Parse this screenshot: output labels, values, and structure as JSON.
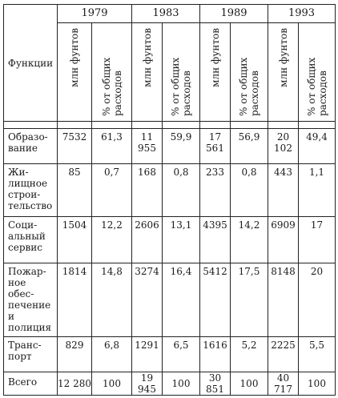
{
  "table": {
    "function_header": "Функции",
    "years": [
      "1979",
      "1983",
      "1989",
      "1993"
    ],
    "subheaders": {
      "mln": "млн фунтов",
      "mln_1993": "млн фунтов",
      "pct": "% от общих расходов"
    },
    "rows": [
      {
        "name": "Образо-вание",
        "v": [
          "7532",
          "61,3",
          "11 955",
          "59,9",
          "17 561",
          "56,9",
          "20 102",
          "49,4"
        ]
      },
      {
        "name": "Жи-лищное строи-тельство",
        "v": [
          "85",
          "0,7",
          "168",
          "0,8",
          "233",
          "0,8",
          "443",
          "1,1"
        ]
      },
      {
        "name": "Соци-альный сервис",
        "v": [
          "1504",
          "12,2",
          "2606",
          "13,1",
          "4395",
          "14,2",
          "6909",
          "17"
        ]
      },
      {
        "name": "Пожар-ное обес-печение и полиция",
        "v": [
          "1814",
          "14,8",
          "3274",
          "16,4",
          "5412",
          "17,5",
          "8148",
          "20"
        ]
      },
      {
        "name": "Транс-порт",
        "v": [
          "829",
          "6,8",
          "1291",
          "6,5",
          "1616",
          "5,2",
          "2225",
          "5,5"
        ]
      },
      {
        "name": "Всего",
        "v": [
          "12 280",
          "100",
          "19 945",
          "100",
          "30 851",
          "100",
          "40 717",
          "100"
        ]
      }
    ]
  }
}
